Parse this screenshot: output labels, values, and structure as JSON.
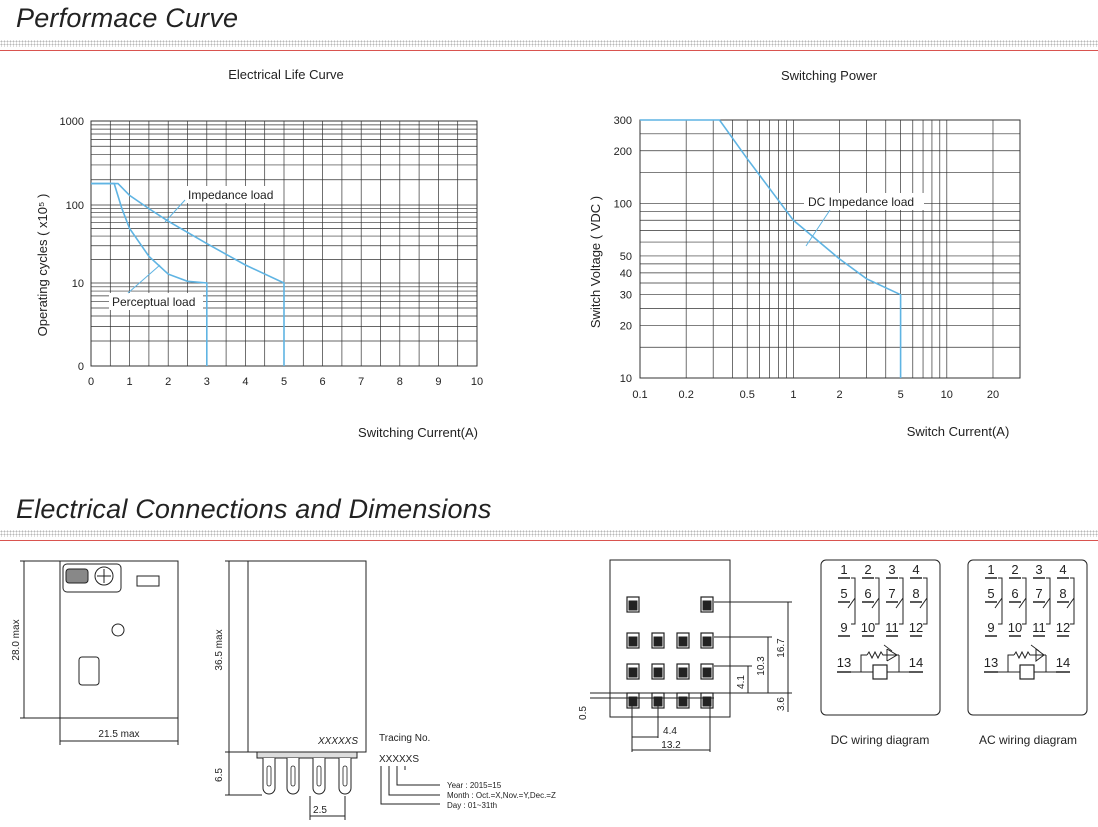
{
  "sections": {
    "performance_title": "Performace Curve",
    "connections_title": "Electrical Connections and Dimensions"
  },
  "colors": {
    "curve": "#5fb4e3",
    "grid": "#333333",
    "title_rule": "#d9534f"
  },
  "chart_data": [
    {
      "type": "line",
      "title": "Electrical Life Curve",
      "xlabel": "Switching Current(A)",
      "ylabel": "Operating cycles ( x10⁵ )",
      "x_ticks": [
        "0",
        "1",
        "2",
        "3",
        "4",
        "5",
        "6",
        "7",
        "8",
        "9",
        "10"
      ],
      "y_ticks": [
        "0",
        "10",
        "100",
        "1000"
      ],
      "xlim": [
        0,
        10
      ],
      "ylim": [
        0,
        1000
      ],
      "y_scale": "log",
      "grid": true,
      "series": [
        {
          "name": "Impedance load",
          "points": [
            [
              0,
              180
            ],
            [
              0.7,
              180
            ],
            [
              1,
              130
            ],
            [
              1.5,
              90
            ],
            [
              2,
              62
            ],
            [
              3,
              32
            ],
            [
              4,
              17
            ],
            [
              5,
              10
            ],
            [
              5,
              0
            ]
          ]
        },
        {
          "name": "Perceptual load",
          "points": [
            [
              0,
              180
            ],
            [
              0.6,
              180
            ],
            [
              0.8,
              90
            ],
            [
              1,
              50
            ],
            [
              1.5,
              22
            ],
            [
              2,
              13
            ],
            [
              2.5,
              10.5
            ],
            [
              3,
              10
            ],
            [
              3,
              0
            ]
          ]
        }
      ]
    },
    {
      "type": "line",
      "title": "Switching Power",
      "xlabel": "Switch Current(A)",
      "ylabel": "Switch Voltage ( VDC )",
      "x_ticks": [
        "0.1",
        "0.2",
        "0.5",
        "1",
        "2",
        "5",
        "10",
        "20"
      ],
      "y_ticks": [
        "10",
        "20",
        "30",
        "40",
        "50",
        "100",
        "200",
        "300"
      ],
      "xlim": [
        0.1,
        30
      ],
      "ylim": [
        10,
        300
      ],
      "x_scale": "log",
      "y_scale": "log",
      "grid": true,
      "series": [
        {
          "name": "DC Impedance load",
          "points": [
            [
              0.1,
              300
            ],
            [
              0.33,
              300
            ],
            [
              0.5,
              180
            ],
            [
              1,
              80
            ],
            [
              2,
              48
            ],
            [
              3,
              37
            ],
            [
              5,
              30
            ],
            [
              5,
              10
            ]
          ]
        }
      ]
    }
  ],
  "dimensions": {
    "front_height": "28.0 max",
    "front_width": "21.5 max",
    "side_height": "36.5 max",
    "side_marking": "XXXXXS",
    "pin_length": "6.5",
    "pin_pitch": "2.5",
    "tracing_title": "Tracing No.",
    "tracing_code": "XXXXXS",
    "tracing_year": "Year   : 2015=15",
    "tracing_month": "Month : Oct.=X,Nov.=Y,Dec.=Z",
    "tracing_day": "Day    : 01~31th",
    "pins_d1": "16.7",
    "pins_d2": "10.3",
    "pins_d3": "4.1",
    "pins_d4": "3.6",
    "pins_d5": "0.5",
    "pins_d6": "4.4",
    "pins_d7": "13.2",
    "pin_labels": [
      "14",
      "13",
      "12",
      "11",
      "10",
      "9",
      "8",
      "7",
      "6",
      "5",
      "4",
      "3",
      "2",
      "1"
    ]
  },
  "wiring": {
    "dc_caption": "DC wiring diagram",
    "ac_caption": "AC wiring diagram",
    "terminals": [
      "1",
      "2",
      "3",
      "4",
      "5",
      "6",
      "7",
      "8",
      "9",
      "10",
      "11",
      "12",
      "13",
      "14"
    ]
  }
}
